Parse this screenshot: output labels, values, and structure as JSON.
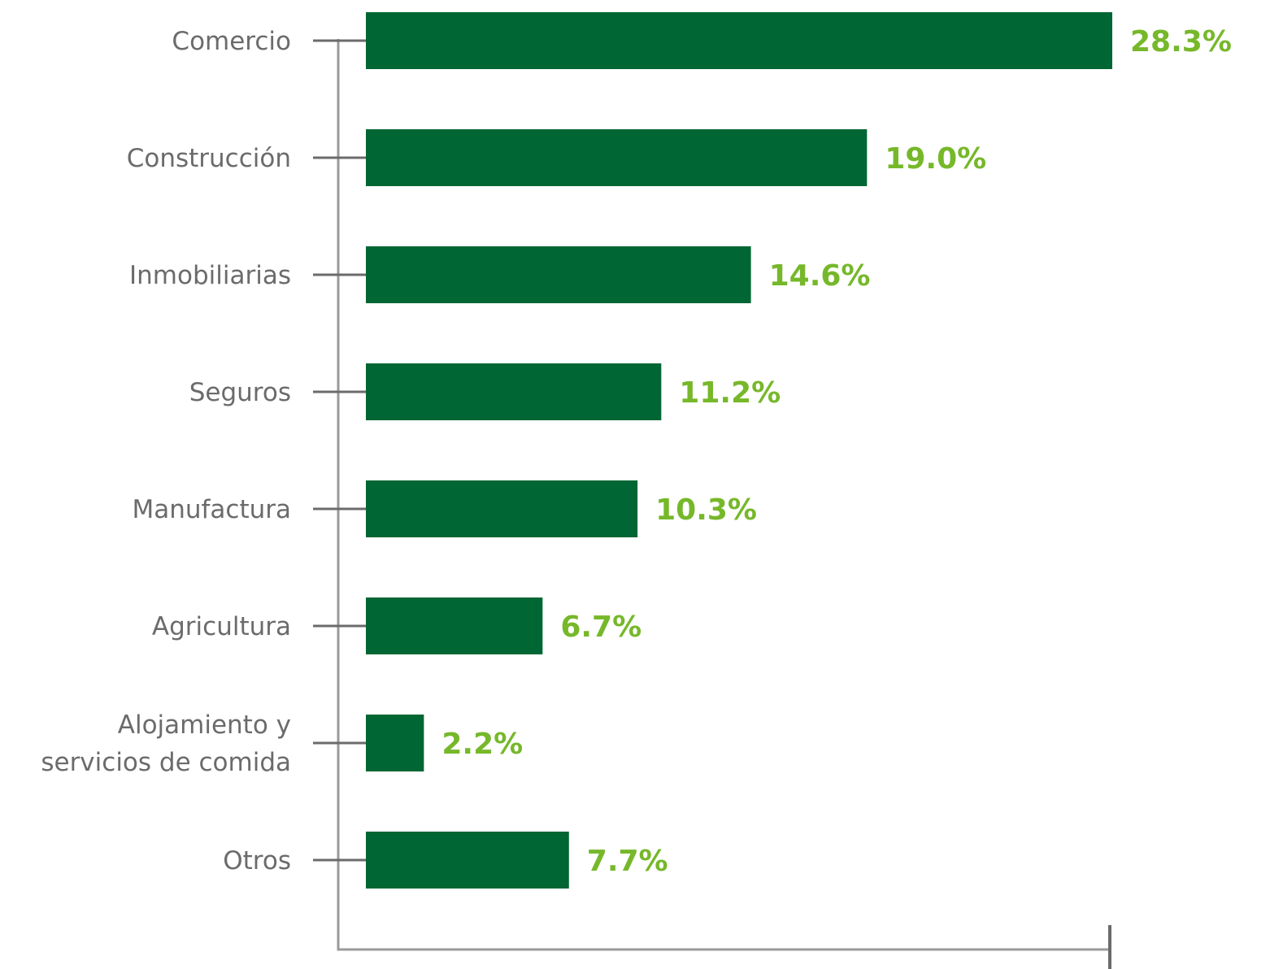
{
  "chart_data": {
    "type": "bar",
    "orientation": "horizontal",
    "title": "",
    "xlabel": "",
    "ylabel": "",
    "categories": [
      [
        "Comercio"
      ],
      [
        "Construcción"
      ],
      [
        "Inmobiliarias"
      ],
      [
        "Seguros"
      ],
      [
        "Manufactura"
      ],
      [
        "Agricultura"
      ],
      [
        "Alojamiento y",
        "servicios de comida"
      ],
      [
        "Otros"
      ]
    ],
    "values": [
      28.3,
      19.0,
      14.6,
      11.2,
      10.3,
      6.7,
      2.2,
      7.7
    ],
    "value_labels": [
      "28.3%",
      "19.0%",
      "14.6%",
      "11.2%",
      "10.3%",
      "6.7%",
      "2.2%",
      "7.7%"
    ],
    "unit": "%",
    "xlim": [
      0,
      28.3
    ],
    "grid": false,
    "colors": {
      "bar": "#006633",
      "value_label": "#76b82a",
      "category_label": "#6b6b6b",
      "axis": "#9a9a9a",
      "tick": "#6b6b6b"
    }
  }
}
